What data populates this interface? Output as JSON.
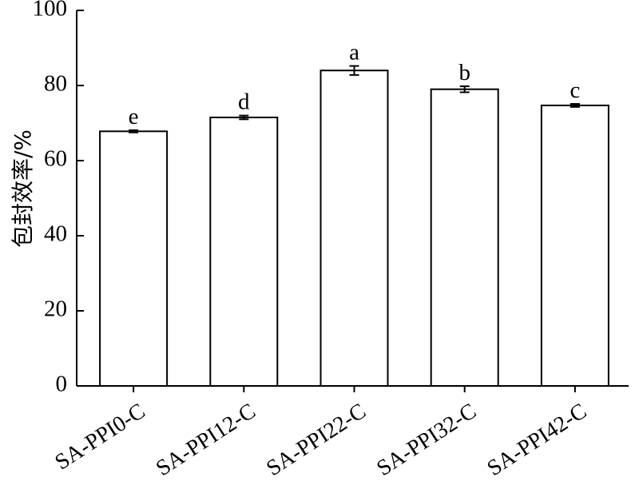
{
  "chart_data": {
    "type": "bar",
    "categories": [
      "SA-PPI0-C",
      "SA-PPI12-C",
      "SA-PPI22-C",
      "SA-PPI32-C",
      "SA-PPI42-C"
    ],
    "values": [
      67.8,
      71.5,
      84.0,
      79.0,
      74.7
    ],
    "errors": [
      0.3,
      0.5,
      1.2,
      0.8,
      0.4
    ],
    "significance": [
      "e",
      "d",
      "a",
      "b",
      "c"
    ],
    "ylabel": "包封效率/%",
    "xlabel": "",
    "ylim": [
      0,
      100
    ],
    "yticks": [
      0,
      20,
      40,
      60,
      80,
      100
    ],
    "bar_fill": "#ffffff",
    "bar_stroke": "#000000",
    "grid": false
  }
}
